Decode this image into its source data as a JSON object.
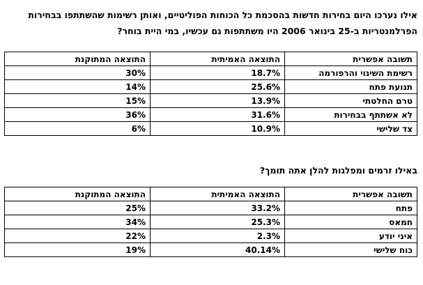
{
  "question1": {
    "line1": "אילו נערכו היום בחירות חדשות בהסכמת כל הכוחות הפוליטיים, ואותן רשימות שהשתתפו בבחירות",
    "line2": "הפרלמנטריות ב-25 בינואר 2006 היו משתתפות גם עכשיו, במי היית בוחר?"
  },
  "table1": {
    "headers": [
      "תשובה אפשרית",
      "התוצאה האמיתית",
      "התוצאה המתוקנת"
    ],
    "rows": [
      {
        "answer": "רשימת השינוי והרפורמה",
        "actual": "18.7%",
        "weighted": "30%"
      },
      {
        "answer": "תנועת פתח",
        "actual": "25.6%",
        "weighted": "14%"
      },
      {
        "answer": "טרם החלטתי",
        "actual": "13.9%",
        "weighted": "15%"
      },
      {
        "answer": "לא אשתתף בבחירות",
        "actual": "31.6%",
        "weighted": "36%"
      },
      {
        "answer": "צד שלישי",
        "actual": "10.9%",
        "weighted": "6%"
      }
    ]
  },
  "question2": {
    "line1": "באילו זרמים ומפלגות להלן אתה תומך?"
  },
  "table2": {
    "headers": [
      "תשובה אפשרית",
      "התוצאה האמיתית",
      "התוצאה המתוקנת"
    ],
    "rows": [
      {
        "answer": "פתח",
        "actual": "33.2%",
        "weighted": "25%"
      },
      {
        "answer": "חמאס",
        "actual": "25.3%",
        "weighted": "34%"
      },
      {
        "answer": "איני יודע",
        "actual": "2.3%",
        "weighted": "22%"
      },
      {
        "answer": "כוח שלישי",
        "actual": "40.14%",
        "weighted": "19%"
      }
    ]
  }
}
